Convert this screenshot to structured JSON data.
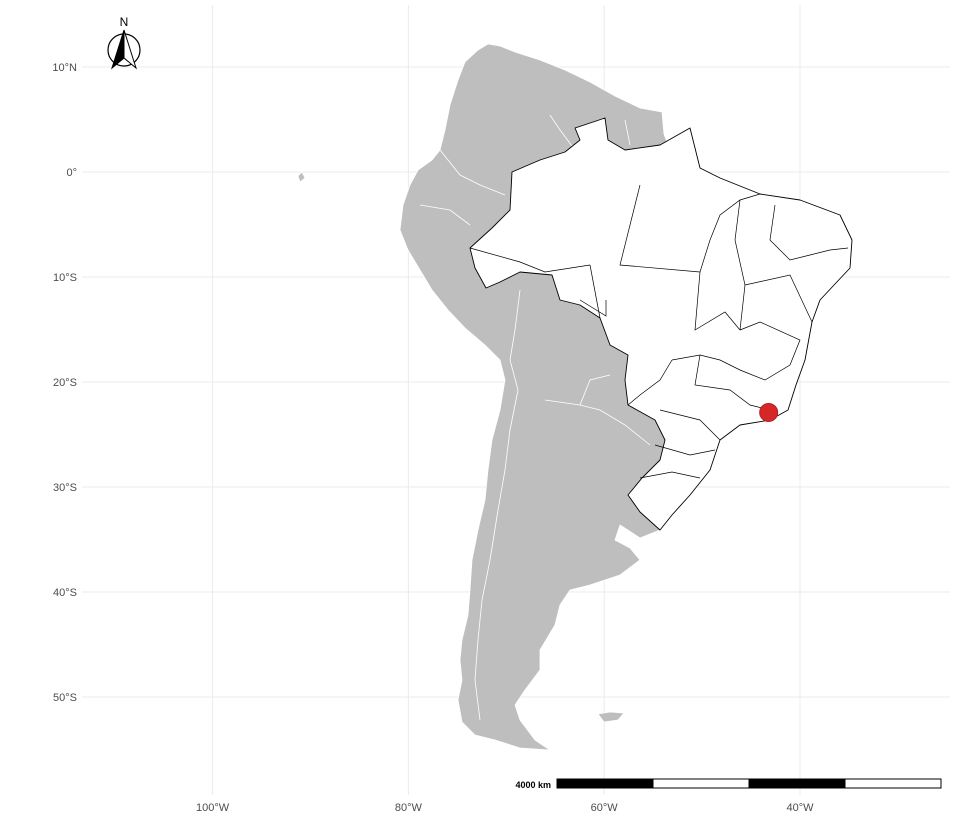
{
  "map": {
    "lat_ticks": [
      {
        "value": 10,
        "label": "10°N"
      },
      {
        "value": 0,
        "label": "0°"
      },
      {
        "value": -10,
        "label": "10°S"
      },
      {
        "value": -20,
        "label": "20°S"
      },
      {
        "value": -30,
        "label": "30°S"
      },
      {
        "value": -40,
        "label": "40°S"
      },
      {
        "value": -50,
        "label": "50°S"
      }
    ],
    "lon_ticks": [
      {
        "value": -100,
        "label": "100°W"
      },
      {
        "value": -80,
        "label": "80°W"
      },
      {
        "value": -60,
        "label": "60°W"
      },
      {
        "value": -40,
        "label": "40°W"
      }
    ],
    "grid": true,
    "marker": {
      "lon": -43.2,
      "lat": -22.9,
      "color": "#d62728"
    },
    "north_arrow": {
      "label": "N",
      "placement": "top-left"
    },
    "scale_bar": {
      "label": "4000 km",
      "segments": 4,
      "placement": "bottom-right"
    },
    "colors": {
      "land": "#bebebe",
      "highlight_country": "#ffffff",
      "grid": "#ebebeb",
      "marker": "#d62728"
    }
  }
}
